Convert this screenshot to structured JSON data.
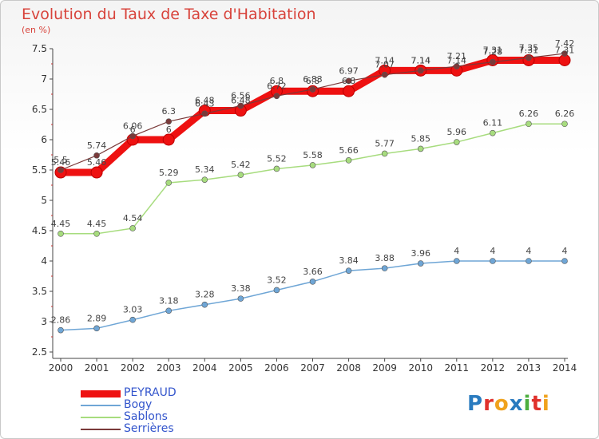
{
  "title": "Evolution du Taux de Taxe d'Habitation",
  "subtitle": "(en %)",
  "logo": [
    "P",
    "r",
    "o",
    "x",
    "i",
    "t",
    "i"
  ],
  "logo_colors": [
    "#2a7bbf",
    "#e0312c",
    "#f0a21d",
    "#2a7bbf",
    "#4cae3f",
    "#e0312c",
    "#f0a21d"
  ],
  "chart_data": {
    "type": "line",
    "title": "Evolution du Taux de Taxe d'Habitation",
    "ylabel": "(en %)",
    "xlabel": "",
    "x": [
      "2000",
      "2001",
      "2002",
      "2003",
      "2004",
      "2005",
      "2006",
      "2007",
      "2008",
      "2009",
      "2010",
      "2011",
      "2012",
      "2013",
      "2014"
    ],
    "ylim": [
      2.5,
      7.5
    ],
    "yticks": [
      "2.5",
      "3",
      "3.5",
      "4",
      "4.5",
      "5",
      "5.5",
      "6",
      "6.5",
      "7",
      "7.5"
    ],
    "grid": false,
    "legend": "bottom-left",
    "series": [
      {
        "name": "PEYRAUD",
        "color": "#ee1111",
        "values": [
          5.46,
          5.46,
          6,
          6,
          6.48,
          6.48,
          6.8,
          6.8,
          6.8,
          7.14,
          7.14,
          7.14,
          7.31,
          7.31,
          7.31
        ],
        "labels": [
          "5.46",
          "5.46",
          "6",
          "6",
          "6.48",
          "6.48",
          "6.8",
          "6.8",
          "6.8",
          "7.14",
          "7.14",
          "7.14",
          "7.31",
          "7.31",
          "7.31"
        ]
      },
      {
        "name": "Bogy",
        "color": "#6fa6d6",
        "values": [
          2.86,
          2.89,
          3.03,
          3.18,
          3.28,
          3.38,
          3.52,
          3.66,
          3.84,
          3.88,
          3.96,
          4,
          4,
          4,
          4
        ],
        "labels": [
          "2.86",
          "2.89",
          "3.03",
          "3.18",
          "3.28",
          "3.38",
          "3.52",
          "3.66",
          "3.84",
          "3.88",
          "3.96",
          "4",
          "4",
          "4",
          "4"
        ]
      },
      {
        "name": "Sablons",
        "color": "#a7dc7e",
        "values": [
          4.45,
          4.45,
          4.54,
          5.29,
          5.34,
          5.42,
          5.52,
          5.58,
          5.66,
          5.77,
          5.85,
          5.96,
          6.11,
          6.26,
          6.26
        ],
        "labels": [
          "4.45",
          "4.45",
          "4.54",
          "5.29",
          "5.34",
          "5.42",
          "5.52",
          "5.58",
          "5.66",
          "5.77",
          "5.85",
          "5.96",
          "6.11",
          "6.26",
          "6.26"
        ]
      },
      {
        "name": "Serrières",
        "color": "#7a3a3a",
        "values": [
          5.5,
          5.74,
          6.06,
          6.3,
          6.43,
          6.56,
          6.72,
          6.83,
          6.97,
          7.07,
          7.14,
          7.21,
          7.28,
          7.35,
          7.42
        ],
        "labels": [
          "5.5",
          "5.74",
          "6.06",
          "6.3",
          "6.43",
          "6.56",
          "6.72",
          "6.83",
          "6.97",
          "7.07",
          "7.14",
          "7.21",
          "7.28",
          "7.35",
          "7.42"
        ]
      }
    ]
  }
}
